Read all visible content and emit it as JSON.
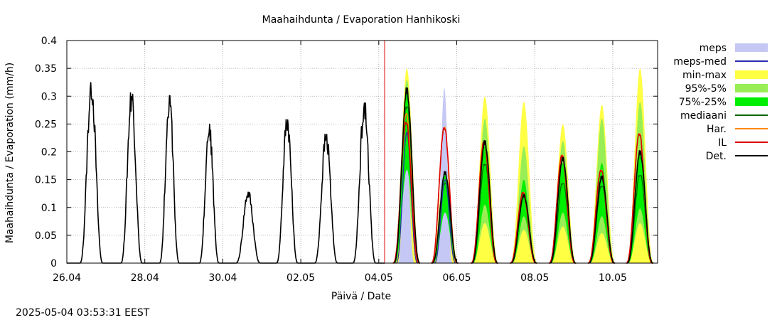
{
  "chart_data": {
    "type": "line",
    "title": "Maahaihdunta / Evaporation  Hanhikoski",
    "xlabel": "Päivä / Date",
    "ylabel": "Maahaihdunta / Evaporation (mm/h)",
    "timestamp": "2025-05-04 03:53:31 EEST",
    "x_domain_days": [
      0,
      15.15
    ],
    "x_ticks": [
      {
        "day": 0,
        "label": "26.04"
      },
      {
        "day": 2,
        "label": "28.04"
      },
      {
        "day": 4,
        "label": "30.04"
      },
      {
        "day": 6,
        "label": "02.05"
      },
      {
        "day": 8,
        "label": "04.05"
      },
      {
        "day": 10,
        "label": "06.05"
      },
      {
        "day": 12,
        "label": "08.05"
      },
      {
        "day": 14,
        "label": "10.05"
      }
    ],
    "ylim": [
      0,
      0.4
    ],
    "y_ticks": [
      "0",
      "0.05",
      "0.1",
      "0.15",
      "0.2",
      "0.25",
      "0.3",
      "0.35",
      "0.4"
    ],
    "y_tick_values": [
      0,
      0.05,
      0.1,
      0.15,
      0.2,
      0.25,
      0.3,
      0.35,
      0.4
    ],
    "grid": true,
    "forecast_start_day": 8.15,
    "legend_position": "right",
    "legend": [
      {
        "label": "meps",
        "color": "#c5c8f4",
        "style": "box"
      },
      {
        "label": "meps-med",
        "color": "#2b2bb0",
        "style": "line"
      },
      {
        "label": "min-max",
        "color": "#ffff44",
        "style": "box"
      },
      {
        "label": "95%-5%",
        "color": "#99ee55",
        "style": "box"
      },
      {
        "label": "75%-25%",
        "color": "#00ee00",
        "style": "box"
      },
      {
        "label": "mediaani",
        "color": "#006600",
        "style": "line"
      },
      {
        "label": "Har.",
        "color": "#ff8800",
        "style": "line"
      },
      {
        "label": "IL",
        "color": "#dd0000",
        "style": "line"
      },
      {
        "label": "Det.",
        "color": "#000000",
        "style": "line"
      }
    ],
    "observed_daily_peaks": [
      {
        "date": "26.04",
        "day": 0.63,
        "peak": 0.318,
        "width": 0.3
      },
      {
        "date": "27.04",
        "day": 1.66,
        "peak": 0.3,
        "width": 0.28
      },
      {
        "date": "28.04",
        "day": 2.63,
        "peak": 0.295,
        "width": 0.26
      },
      {
        "date": "29.04",
        "day": 3.65,
        "peak": 0.245,
        "width": 0.26
      },
      {
        "date": "30.04",
        "day": 4.65,
        "peak": 0.125,
        "width": 0.32
      },
      {
        "date": "01.05",
        "day": 5.65,
        "peak": 0.258,
        "width": 0.28
      },
      {
        "date": "02.05",
        "day": 6.65,
        "peak": 0.227,
        "width": 0.3
      },
      {
        "date": "03.05",
        "day": 7.63,
        "peak": 0.282,
        "width": 0.3
      }
    ],
    "forecast_daily": [
      {
        "date": "04.05",
        "day": 8.72,
        "min": 0,
        "max": 0.35,
        "p95": 0.33,
        "p75": 0.31,
        "p25": 0.24,
        "p5": 0.2,
        "median": 0.285,
        "det": 0.312,
        "il": 0.255,
        "har": 0.27,
        "meps": 0.235,
        "meps_med": 0.235
      },
      {
        "date": "05.05",
        "day": 9.7,
        "min": 0,
        "max": 0.2,
        "p95": 0.18,
        "p75": 0.16,
        "p25": 0.13,
        "p5": 0.11,
        "median": 0.145,
        "det": 0.163,
        "il": 0.245,
        "har": 0.245,
        "meps": 0.315,
        "meps_med": 0.15
      },
      {
        "date": "06.05",
        "day": 10.72,
        "min": 0,
        "max": 0.3,
        "p95": 0.26,
        "p75": 0.22,
        "p25": 0.15,
        "p5": 0.12,
        "median": 0.18,
        "det": 0.218,
        "il": 0.22,
        "har": 0.22,
        "meps": 0,
        "meps_med": 0
      },
      {
        "date": "07.05",
        "day": 11.72,
        "min": 0,
        "max": 0.29,
        "p95": 0.21,
        "p75": 0.15,
        "p25": 0.12,
        "p5": 0.1,
        "median": 0.12,
        "det": 0.122,
        "il": 0.128,
        "har": 0.128,
        "meps": 0,
        "meps_med": 0
      },
      {
        "date": "08.05",
        "day": 12.72,
        "min": 0,
        "max": 0.25,
        "p95": 0.22,
        "p75": 0.18,
        "p25": 0.13,
        "p5": 0.11,
        "median": 0.145,
        "det": 0.188,
        "il": 0.195,
        "har": 0.195,
        "meps": 0,
        "meps_med": 0
      },
      {
        "date": "09.05",
        "day": 13.72,
        "min": 0,
        "max": 0.285,
        "p95": 0.26,
        "p75": 0.18,
        "p25": 0.12,
        "p5": 0.09,
        "median": 0.14,
        "det": 0.155,
        "il": 0.168,
        "har": 0.168,
        "meps": 0,
        "meps_med": 0
      },
      {
        "date": "10.05",
        "day": 14.7,
        "min": 0,
        "max": 0.35,
        "p95": 0.29,
        "p75": 0.2,
        "p25": 0.14,
        "p5": 0.12,
        "median": 0.16,
        "det": 0.2,
        "il": 0.234,
        "har": 0.234,
        "meps": 0,
        "meps_med": 0
      }
    ]
  }
}
